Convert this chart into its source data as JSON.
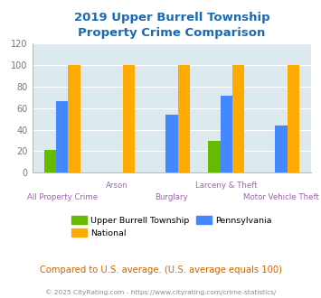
{
  "title": "2019 Upper Burrell Township\nProperty Crime Comparison",
  "title_color": "#1a6ab5",
  "categories": [
    "All Property Crime",
    "Arson",
    "Burglary",
    "Larceny & Theft",
    "Motor Vehicle Theft"
  ],
  "series": {
    "Upper Burrell Township": [
      21,
      0,
      0,
      30,
      0
    ],
    "Pennsylvania": [
      66,
      0,
      54,
      71,
      44
    ],
    "National": [
      100,
      100,
      100,
      100,
      100
    ]
  },
  "colors": {
    "Upper Burrell Township": "#66bb00",
    "Pennsylvania": "#4488ff",
    "National": "#ffaa00"
  },
  "ylim": [
    0,
    120
  ],
  "yticks": [
    0,
    20,
    40,
    60,
    80,
    100,
    120
  ],
  "bg_color": "#dce9ee",
  "grid_color": "#ffffff",
  "xlabel_color": "#9966aa",
  "footer_text": "Compared to U.S. average. (U.S. average equals 100)",
  "footer_color": "#cc6600",
  "copyright_text": "© 2025 CityRating.com - https://www.cityrating.com/crime-statistics/",
  "copyright_color": "#888899",
  "bar_width": 0.22
}
